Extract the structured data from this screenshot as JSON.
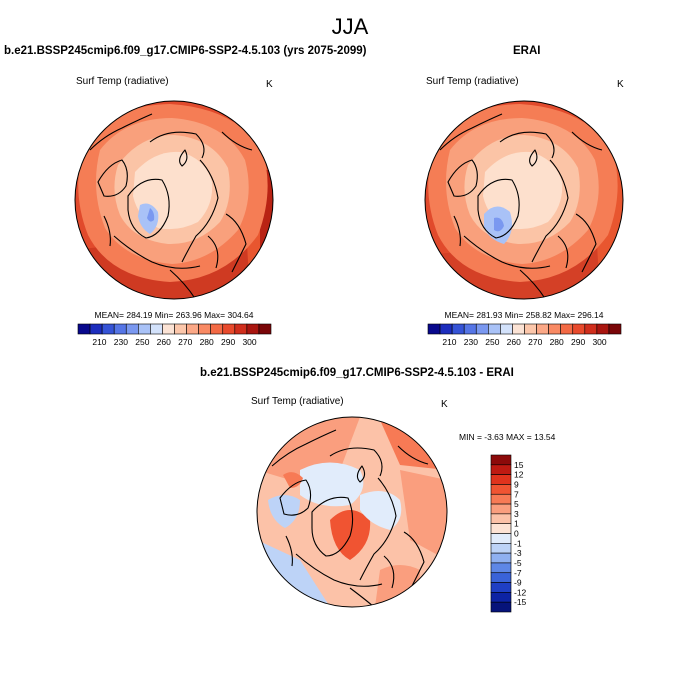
{
  "season": "JJA",
  "panels": {
    "model": {
      "title": "b.e21.BSSP245cmip6.f09_g17.CMIP6-SSP2-4.5.103 (yrs 2075-2099)",
      "variable": "Surf Temp (radiative)",
      "unit": "K",
      "stats": "MEAN= 284.19  Min= 263.96  Max= 304.64"
    },
    "obs": {
      "title": "ERAI",
      "variable": "Surf Temp (radiative)",
      "unit": "K",
      "stats": "MEAN= 281.93  Min= 258.82  Max= 296.14"
    },
    "diff": {
      "title": "b.e21.BSSP245cmip6.f09_g17.CMIP6-SSP2-4.5.103 - ERAI",
      "variable": "Surf Temp (radiative)",
      "unit": "K",
      "stats": "MIN =  -3.63 MAX =  13.54"
    }
  },
  "colorbars": {
    "absolute": {
      "labels": [
        "210",
        "230",
        "250",
        "260",
        "270",
        "280",
        "290",
        "300"
      ],
      "colors": [
        "#08088c",
        "#1c2dbd",
        "#3553d6",
        "#5575e6",
        "#7a98f0",
        "#a9c2f7",
        "#d3e2fb",
        "#fbe3d5",
        "#fcc7ab",
        "#fba887",
        "#f98a64",
        "#f36a45",
        "#e84a2c",
        "#d02e1c",
        "#a9150f",
        "#7a0608"
      ]
    },
    "difference": {
      "labels": [
        "15",
        "12",
        "9",
        "7",
        "5",
        "3",
        "1",
        "0",
        "-1",
        "-3",
        "-5",
        "-7",
        "-9",
        "-12",
        "-15"
      ],
      "colors": [
        "#8c0a0a",
        "#be1a12",
        "#e0331d",
        "#f05432",
        "#f77a55",
        "#fa9e7e",
        "#fcc2a8",
        "#fde3d4",
        "#e1ecfb",
        "#bdd3f7",
        "#8fb0f0",
        "#5e87e6",
        "#3a63d8",
        "#1f3fc4",
        "#0d23a4",
        "#06137a"
      ]
    }
  }
}
